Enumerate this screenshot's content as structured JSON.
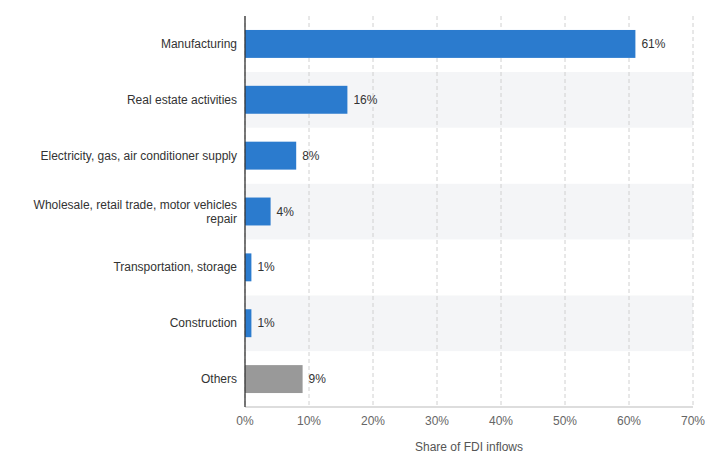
{
  "chart_data": {
    "type": "bar",
    "orientation": "horizontal",
    "categories": [
      "Others",
      "Construction",
      "Transportation, storage",
      "Wholesale, retail trade, motor vehicles\nrepair",
      "Electricity, gas, air conditioner supply",
      "Real estate activities",
      "Manufacturing"
    ],
    "values": [
      9,
      1,
      1,
      4,
      8,
      16,
      61
    ],
    "value_labels": [
      "9%",
      "1%",
      "1%",
      "4%",
      "8%",
      "16%",
      "61%"
    ],
    "data_labels": true,
    "colors": [
      "#999999",
      "#2b7bce",
      "#2b7bce",
      "#2b7bce",
      "#2b7bce",
      "#2b7bce",
      "#2b7bce"
    ],
    "xlabel": "Share of FDI inflows",
    "xlim": [
      0,
      70
    ],
    "xticks": [
      {
        "value": 0,
        "label": "0%"
      },
      {
        "value": 10,
        "label": "10%"
      },
      {
        "value": 20,
        "label": "20%"
      },
      {
        "value": 30,
        "label": "30%"
      },
      {
        "value": 40,
        "label": "40%"
      },
      {
        "value": 50,
        "label": "50%"
      },
      {
        "value": 60,
        "label": "60%"
      },
      {
        "value": 70,
        "label": "70%"
      }
    ],
    "grid": true
  }
}
